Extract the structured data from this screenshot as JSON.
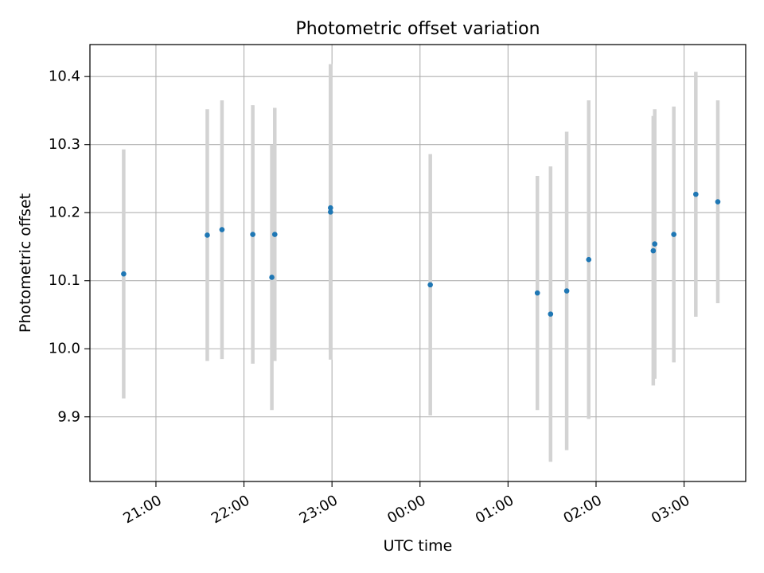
{
  "chart_data": {
    "type": "scatter",
    "title": "Photometric offset variation",
    "xlabel": "UTC time",
    "ylabel": "Photometric offset",
    "grid": true,
    "x_axis_type": "time",
    "xlim": [
      "20:15",
      "03:42"
    ],
    "ylim": [
      9.805,
      10.447
    ],
    "xticks": [
      "21:00",
      "22:00",
      "23:00",
      "00:00",
      "01:00",
      "02:00",
      "03:00"
    ],
    "yticks": [
      9.9,
      10.0,
      10.1,
      10.2,
      10.3,
      10.4
    ],
    "ytick_labels": [
      "9.9",
      "10.0",
      "10.1",
      "10.2",
      "10.3",
      "10.4"
    ],
    "colors": {
      "points": "#1f77b4",
      "error_bars": "#d3d3d3",
      "grid": "#b0b0b0",
      "axes": "#000000"
    },
    "series": [
      {
        "points": [
          {
            "x": "20:38",
            "y": 10.11,
            "yerr": 0.183
          },
          {
            "x": "21:35",
            "y": 10.167,
            "yerr": 0.185
          },
          {
            "x": "21:45",
            "y": 10.175,
            "yerr": 0.19
          },
          {
            "x": "22:06",
            "y": 10.168,
            "yerr": 0.19
          },
          {
            "x": "22:19",
            "y": 10.105,
            "yerr": 0.195
          },
          {
            "x": "22:21",
            "y": 10.168,
            "yerr": 0.186
          },
          {
            "x": "22:59",
            "y": 10.207,
            "yerr": 0.211
          },
          {
            "x": "22:59",
            "y": 10.201,
            "yerr": 0.217
          },
          {
            "x": "00:07",
            "y": 10.094,
            "yerr": 0.192
          },
          {
            "x": "01:20",
            "y": 10.082,
            "yerr": 0.172
          },
          {
            "x": "01:29",
            "y": 10.051,
            "yerr": 0.217
          },
          {
            "x": "01:40",
            "y": 10.085,
            "yerr": 0.234
          },
          {
            "x": "01:55",
            "y": 10.131,
            "yerr": 0.234
          },
          {
            "x": "02:39",
            "y": 10.144,
            "yerr": 0.198
          },
          {
            "x": "02:40",
            "y": 10.154,
            "yerr": 0.198
          },
          {
            "x": "02:53",
            "y": 10.168,
            "yerr": 0.188
          },
          {
            "x": "03:08",
            "y": 10.227,
            "yerr": 0.18
          },
          {
            "x": "03:23",
            "y": 10.216,
            "yerr": 0.149
          }
        ]
      }
    ]
  }
}
